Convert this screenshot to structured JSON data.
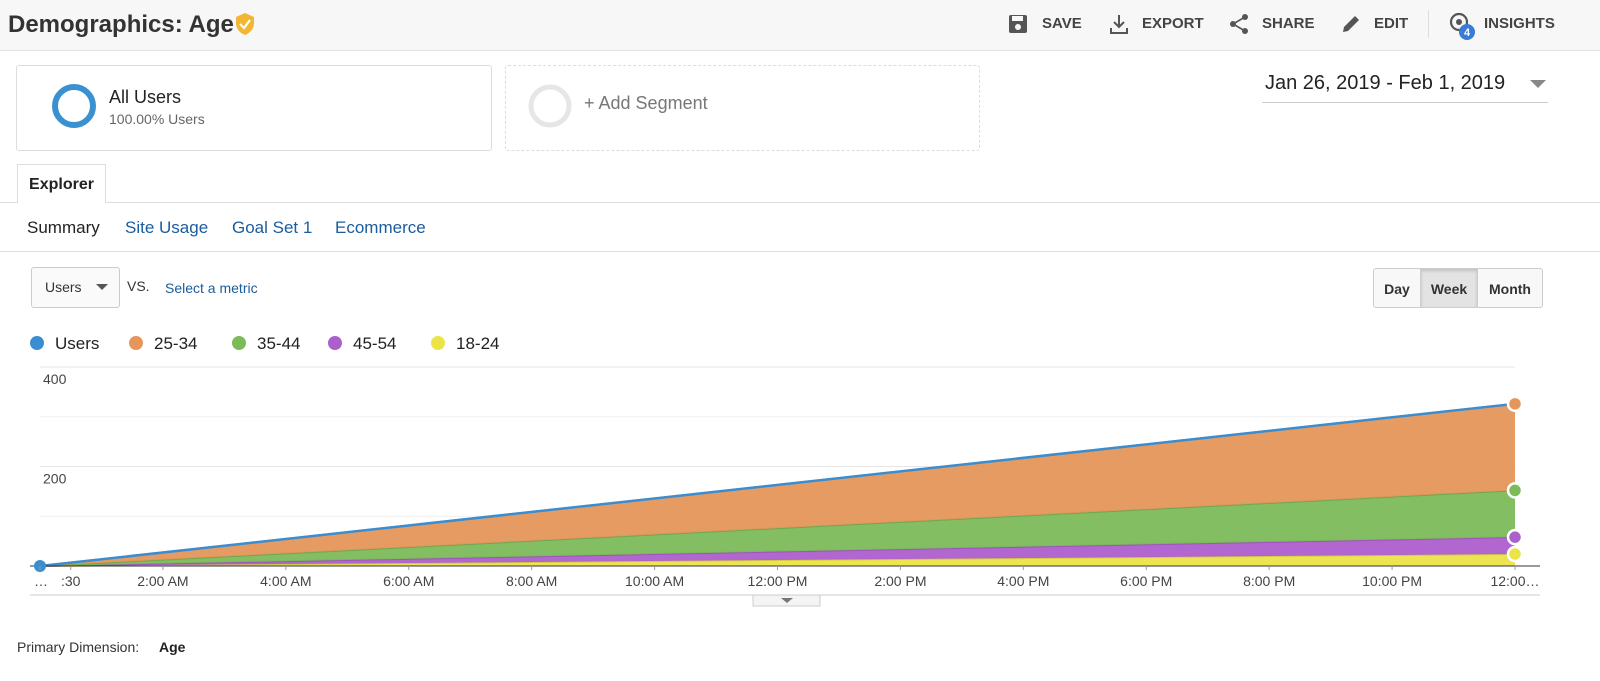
{
  "header": {
    "title": "Demographics: Age",
    "actions": [
      "SAVE",
      "EXPORT",
      "SHARE",
      "EDIT",
      "INSIGHTS"
    ],
    "insights_badge": "4"
  },
  "segments": {
    "active": {
      "name": "All Users",
      "detail": "100.00% Users"
    },
    "add": "+ Add Segment"
  },
  "date_range": "Jan 26, 2019 - Feb 1, 2019",
  "tab": "Explorer",
  "subtabs": [
    "Summary",
    "Site Usage",
    "Goal Set 1",
    "Ecommerce"
  ],
  "metric": {
    "selected": "Users",
    "vs": "VS.",
    "select": "Select a metric"
  },
  "granularity": {
    "options": [
      "Day",
      "Week",
      "Month"
    ],
    "active": 1
  },
  "primary_dimension": {
    "label": "Primary Dimension:",
    "value": "Age"
  },
  "chart_data": {
    "type": "area",
    "x": [
      0,
      24
    ],
    "xlim": [
      0,
      24
    ],
    "xticks": [
      {
        "value": 0,
        "label": "…"
      },
      {
        "value": 0.5,
        "label": ":30"
      },
      {
        "value": 2,
        "label": "2:00 AM"
      },
      {
        "value": 4,
        "label": "4:00 AM"
      },
      {
        "value": 6,
        "label": "6:00 AM"
      },
      {
        "value": 8,
        "label": "8:00 AM"
      },
      {
        "value": 10,
        "label": "10:00 AM"
      },
      {
        "value": 12,
        "label": "12:00 PM"
      },
      {
        "value": 14,
        "label": "2:00 PM"
      },
      {
        "value": 16,
        "label": "4:00 PM"
      },
      {
        "value": 18,
        "label": "6:00 PM"
      },
      {
        "value": 20,
        "label": "8:00 PM"
      },
      {
        "value": 22,
        "label": "10:00 PM"
      },
      {
        "value": 24,
        "label": "12:00…"
      }
    ],
    "ylim": [
      0,
      400
    ],
    "yticks": [
      200,
      400
    ],
    "minor_yticks": [
      100,
      300
    ],
    "grid": true,
    "series": [
      {
        "name": "Users",
        "color": "#3a8dd0",
        "stacked": false,
        "values": [
          0,
          326
        ]
      },
      {
        "name": "25-34",
        "color": "#e5965a",
        "stacked": true,
        "values": [
          0,
          174
        ]
      },
      {
        "name": "35-44",
        "color": "#7cbb5a",
        "stacked": true,
        "values": [
          0,
          94
        ]
      },
      {
        "name": "45-54",
        "color": "#ad5fcc",
        "stacked": true,
        "values": [
          0,
          34
        ]
      },
      {
        "name": "18-24",
        "color": "#ebe448",
        "stacked": true,
        "values": [
          0,
          24
        ]
      }
    ]
  }
}
